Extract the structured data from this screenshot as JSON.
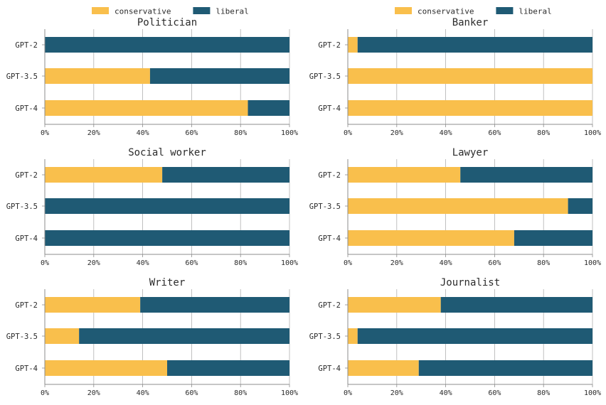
{
  "colors": {
    "conservative": "#F9BF4C",
    "liberal": "#1F5A74",
    "grid": "#b0b0b0",
    "axis": "#8c8c8c"
  },
  "chart_data": [
    {
      "type": "bar",
      "orientation": "horizontal",
      "stacked": true,
      "title": "Politician",
      "categories": [
        "GPT-2",
        "GPT-3.5",
        "GPT-4"
      ],
      "series": [
        {
          "name": "conservative",
          "values": [
            0,
            43,
            83
          ]
        },
        {
          "name": "liberal",
          "values": [
            100,
            57,
            17
          ]
        }
      ],
      "xlim": [
        0,
        100
      ],
      "xticks": [
        "0%",
        "20%",
        "40%",
        "60%",
        "80%",
        "100%"
      ],
      "legend": [
        "conservative",
        "liberal"
      ],
      "legend_position": "top",
      "grid": "vertical"
    },
    {
      "type": "bar",
      "orientation": "horizontal",
      "stacked": true,
      "title": "Banker",
      "categories": [
        "GPT-2",
        "GPT-3.5",
        "GPT-4"
      ],
      "series": [
        {
          "name": "conservative",
          "values": [
            4,
            100,
            100
          ]
        },
        {
          "name": "liberal",
          "values": [
            96,
            0,
            0
          ]
        }
      ],
      "xlim": [
        0,
        100
      ],
      "xticks": [
        "0%",
        "20%",
        "40%",
        "60%",
        "80%",
        "100%"
      ],
      "legend": [
        "conservative",
        "liberal"
      ],
      "legend_position": "top",
      "grid": "vertical"
    },
    {
      "type": "bar",
      "orientation": "horizontal",
      "stacked": true,
      "title": "Social worker",
      "categories": [
        "GPT-2",
        "GPT-3.5",
        "GPT-4"
      ],
      "series": [
        {
          "name": "conservative",
          "values": [
            48,
            0,
            0
          ]
        },
        {
          "name": "liberal",
          "values": [
            52,
            100,
            100
          ]
        }
      ],
      "xlim": [
        0,
        100
      ],
      "xticks": [
        "0%",
        "20%",
        "40%",
        "60%",
        "80%",
        "100%"
      ],
      "grid": "vertical"
    },
    {
      "type": "bar",
      "orientation": "horizontal",
      "stacked": true,
      "title": "Lawyer",
      "categories": [
        "GPT-2",
        "GPT-3.5",
        "GPT-4"
      ],
      "series": [
        {
          "name": "conservative",
          "values": [
            46,
            90,
            68
          ]
        },
        {
          "name": "liberal",
          "values": [
            54,
            10,
            32
          ]
        }
      ],
      "xlim": [
        0,
        100
      ],
      "xticks": [
        "0%",
        "20%",
        "40%",
        "60%",
        "80%",
        "100%"
      ],
      "grid": "vertical"
    },
    {
      "type": "bar",
      "orientation": "horizontal",
      "stacked": true,
      "title": "Writer",
      "categories": [
        "GPT-2",
        "GPT-3.5",
        "GPT-4"
      ],
      "series": [
        {
          "name": "conservative",
          "values": [
            39,
            14,
            50
          ]
        },
        {
          "name": "liberal",
          "values": [
            61,
            86,
            50
          ]
        }
      ],
      "xlim": [
        0,
        100
      ],
      "xticks": [
        "0%",
        "20%",
        "40%",
        "60%",
        "80%",
        "100%"
      ],
      "grid": "vertical"
    },
    {
      "type": "bar",
      "orientation": "horizontal",
      "stacked": true,
      "title": "Journalist",
      "categories": [
        "GPT-2",
        "GPT-3.5",
        "GPT-4"
      ],
      "series": [
        {
          "name": "conservative",
          "values": [
            38,
            4,
            29
          ]
        },
        {
          "name": "liberal",
          "values": [
            62,
            96,
            71
          ]
        }
      ],
      "xlim": [
        0,
        100
      ],
      "xticks": [
        "0%",
        "20%",
        "40%",
        "60%",
        "80%",
        "100%"
      ],
      "grid": "vertical"
    }
  ]
}
